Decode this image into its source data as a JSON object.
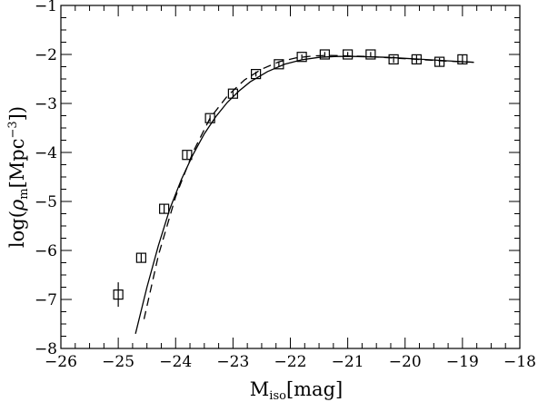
{
  "chart_data": {
    "type": "scatter",
    "title": "",
    "xlabel": {
      "main": "M",
      "sub": "iso",
      "unit": "[mag]"
    },
    "ylabel": {
      "pre": "log(",
      "rho": "ρ",
      "sub": "m",
      "unit": "[Mpc",
      "sup": "−3",
      "post": "])"
    },
    "xlim": [
      -26,
      -18
    ],
    "ylim": [
      -8,
      -1
    ],
    "x_major_ticks": [
      -26,
      -25,
      -24,
      -23,
      -22,
      -21,
      -20,
      -19,
      -18
    ],
    "x_tick_labels": [
      "−26",
      "−25",
      "−24",
      "−23",
      "−22",
      "−21",
      "−20",
      "−19",
      "−18"
    ],
    "y_major_ticks": [
      -8,
      -7,
      -6,
      -5,
      -4,
      -3,
      -2,
      -1
    ],
    "y_tick_labels": [
      "−8",
      "−7",
      "−6",
      "−5",
      "−4",
      "−3",
      "−2",
      "−1"
    ],
    "minor_tick_step": 0.25,
    "grid": false,
    "series": [
      {
        "kind": "points",
        "marker": "open-square",
        "x": [
          -25.0,
          -24.6,
          -24.2,
          -23.8,
          -23.4,
          -23.0,
          -22.6,
          -22.2,
          -21.8,
          -21.4,
          -21.0,
          -20.6,
          -20.2,
          -19.8,
          -19.4,
          -19.0
        ],
        "y": [
          -6.9,
          -6.15,
          -5.15,
          -4.05,
          -3.3,
          -2.8,
          -2.4,
          -2.2,
          -2.05,
          -2.0,
          -2.0,
          -2.0,
          -2.1,
          -2.1,
          -2.15,
          -2.1
        ],
        "yerr": [
          0.25,
          0.1,
          0.1,
          0.08,
          0.07,
          0.06,
          0.05,
          0.05,
          0.05,
          0.05,
          0.05,
          0.05,
          0.07,
          0.08,
          0.08,
          0.1
        ]
      },
      {
        "kind": "line",
        "style": "dashed",
        "x": [
          -24.55,
          -24.3,
          -24.0,
          -23.7,
          -23.4,
          -23.1,
          -22.8,
          -22.5,
          -22.2,
          -21.9,
          -21.6,
          -21.3,
          -21.0,
          -20.7,
          -20.4,
          -20.1,
          -19.8,
          -19.5,
          -19.2,
          -19.0,
          -18.8
        ],
        "y": [
          -7.4,
          -6.1,
          -4.9,
          -4.0,
          -3.3,
          -2.85,
          -2.52,
          -2.3,
          -2.15,
          -2.07,
          -2.03,
          -2.02,
          -2.03,
          -2.04,
          -2.06,
          -2.08,
          -2.1,
          -2.12,
          -2.14,
          -2.15,
          -2.16
        ]
      },
      {
        "kind": "line",
        "style": "solid",
        "x": [
          -24.7,
          -24.5,
          -24.3,
          -24.1,
          -23.9,
          -23.7,
          -23.5,
          -23.3,
          -23.1,
          -22.9,
          -22.7,
          -22.4,
          -22.1,
          -21.8,
          -21.5,
          -21.2,
          -20.9,
          -20.6,
          -20.3,
          -20.0,
          -19.7,
          -19.4,
          -19.1,
          -18.8
        ],
        "y": [
          -7.7,
          -6.75,
          -5.9,
          -5.15,
          -4.55,
          -4.05,
          -3.62,
          -3.27,
          -2.98,
          -2.75,
          -2.56,
          -2.35,
          -2.2,
          -2.11,
          -2.06,
          -2.04,
          -2.04,
          -2.05,
          -2.06,
          -2.08,
          -2.1,
          -2.12,
          -2.14,
          -2.16
        ]
      }
    ]
  }
}
